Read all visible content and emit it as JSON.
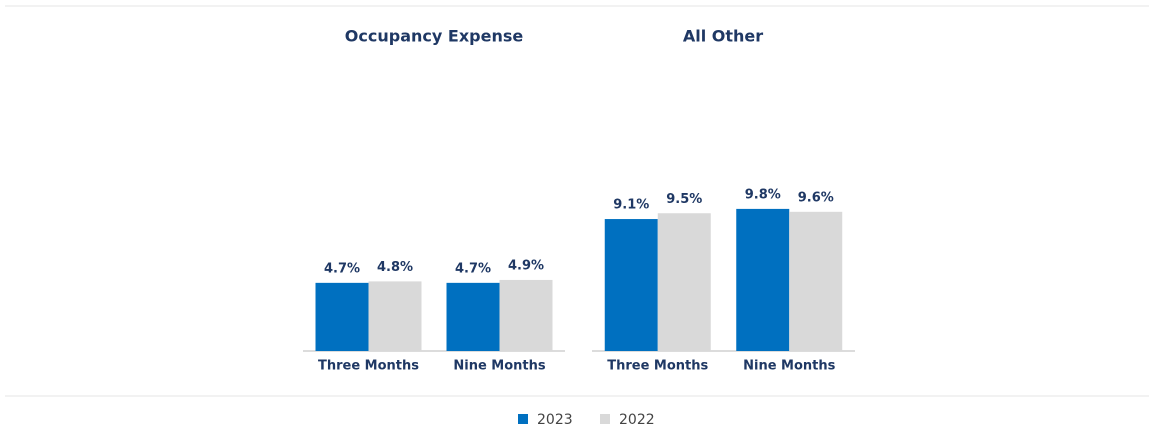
{
  "chart_data": [
    {
      "type": "bar",
      "title": "Occupancy Expense",
      "categories": [
        "Three Months",
        "Nine Months"
      ],
      "series": [
        {
          "values": [
            4.7,
            4.7
          ],
          "value_labels": [
            "4.7%",
            "4.7%"
          ]
        },
        {
          "values": [
            4.8,
            4.9
          ],
          "value_labels": [
            "4.8%",
            "4.9%"
          ]
        }
      ]
    },
    {
      "type": "bar",
      "title": "All Other",
      "categories": [
        "Three Months",
        "Nine Months"
      ],
      "series": [
        {
          "values": [
            9.1,
            9.8
          ],
          "value_labels": [
            "9.1%",
            "9.8%"
          ]
        },
        {
          "values": [
            9.5,
            9.6
          ],
          "value_labels": [
            "9.5%",
            "9.6%"
          ]
        }
      ]
    }
  ],
  "legend": [
    {
      "name": "2023",
      "color": "#0070c0"
    },
    {
      "name": "2022",
      "color": "#d9d9d9"
    }
  ]
}
